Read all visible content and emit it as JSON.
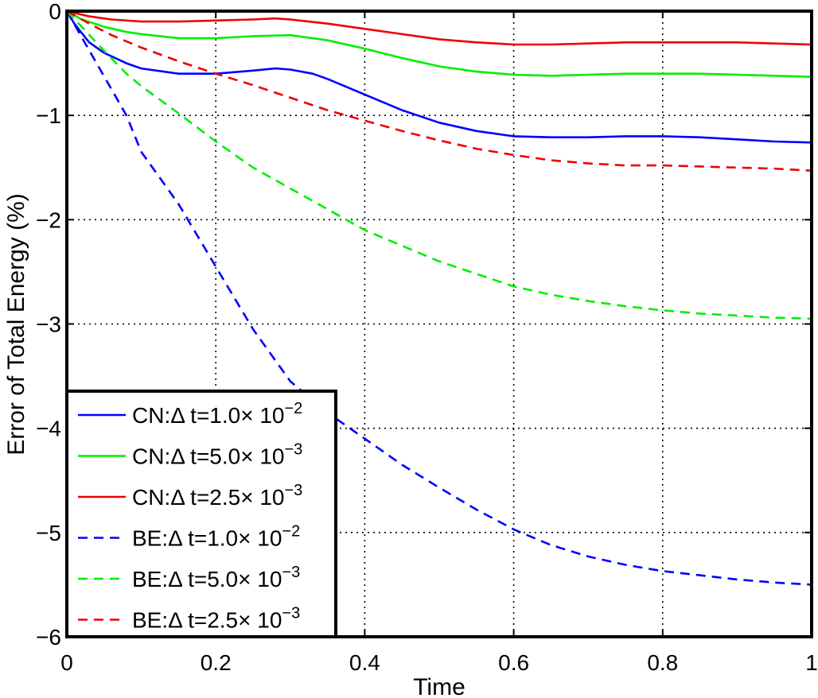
{
  "chart_data": {
    "type": "line",
    "title": "",
    "xlabel": "Time",
    "ylabel": "Error of Total Energy (%)",
    "xlim": [
      0,
      1
    ],
    "ylim": [
      -6,
      0
    ],
    "grid": true,
    "legend_position": "bottom-left",
    "x_ticks": [
      {
        "value": 0,
        "label": "0"
      },
      {
        "value": 0.2,
        "label": "0.2"
      },
      {
        "value": 0.4,
        "label": "0.4"
      },
      {
        "value": 0.6,
        "label": "0.6"
      },
      {
        "value": 0.8,
        "label": "0.8"
      },
      {
        "value": 1,
        "label": "1"
      }
    ],
    "y_ticks": [
      {
        "value": 0,
        "label": "0"
      },
      {
        "value": -1,
        "label": "−1"
      },
      {
        "value": -2,
        "label": "−2"
      },
      {
        "value": -3,
        "label": "−3"
      },
      {
        "value": -4,
        "label": "−4"
      },
      {
        "value": -5,
        "label": "−5"
      },
      {
        "value": -6,
        "label": "−6"
      }
    ],
    "series": [
      {
        "name": "CN:Δ t=1.0× 10^-2",
        "label_base": "CN:Δ t=1.0× 10",
        "label_exp": "−2",
        "color": "#0000ff",
        "dash": "solid",
        "x": [
          0,
          0.01,
          0.03,
          0.05,
          0.08,
          0.1,
          0.15,
          0.2,
          0.25,
          0.28,
          0.3,
          0.33,
          0.35,
          0.4,
          0.45,
          0.5,
          0.55,
          0.6,
          0.65,
          0.7,
          0.75,
          0.8,
          0.85,
          0.9,
          0.95,
          1.0
        ],
        "y": [
          0,
          -0.12,
          -0.3,
          -0.4,
          -0.5,
          -0.55,
          -0.6,
          -0.6,
          -0.57,
          -0.55,
          -0.56,
          -0.6,
          -0.65,
          -0.8,
          -0.95,
          -1.07,
          -1.15,
          -1.2,
          -1.21,
          -1.21,
          -1.2,
          -1.2,
          -1.21,
          -1.23,
          -1.25,
          -1.26
        ]
      },
      {
        "name": "CN:Δ t=5.0× 10^-3",
        "label_base": "CN:Δ t=5.0× 10",
        "label_exp": "−3",
        "color": "#00ee00",
        "dash": "solid",
        "x": [
          0,
          0.02,
          0.05,
          0.08,
          0.1,
          0.15,
          0.2,
          0.25,
          0.3,
          0.35,
          0.4,
          0.45,
          0.5,
          0.55,
          0.6,
          0.65,
          0.7,
          0.75,
          0.8,
          0.85,
          0.9,
          0.95,
          1.0
        ],
        "y": [
          0,
          -0.08,
          -0.15,
          -0.2,
          -0.22,
          -0.26,
          -0.26,
          -0.24,
          -0.23,
          -0.28,
          -0.36,
          -0.45,
          -0.53,
          -0.58,
          -0.61,
          -0.62,
          -0.61,
          -0.6,
          -0.6,
          -0.6,
          -0.61,
          -0.62,
          -0.63
        ]
      },
      {
        "name": "CN:Δ t=2.5× 10^-3",
        "label_base": "CN:Δ t=2.5× 10",
        "label_exp": "−3",
        "color": "#ee0000",
        "dash": "solid",
        "x": [
          0,
          0.03,
          0.06,
          0.1,
          0.15,
          0.2,
          0.25,
          0.28,
          0.3,
          0.35,
          0.4,
          0.45,
          0.5,
          0.55,
          0.6,
          0.65,
          0.7,
          0.75,
          0.8,
          0.85,
          0.9,
          0.95,
          1.0
        ],
        "y": [
          0,
          -0.05,
          -0.08,
          -0.1,
          -0.1,
          -0.09,
          -0.08,
          -0.07,
          -0.08,
          -0.12,
          -0.17,
          -0.22,
          -0.27,
          -0.3,
          -0.32,
          -0.32,
          -0.31,
          -0.3,
          -0.3,
          -0.3,
          -0.3,
          -0.31,
          -0.32
        ]
      },
      {
        "name": "BE:Δ t=1.0× 10^-2",
        "label_base": "BE:Δ t=1.0× 10",
        "label_exp": "−2",
        "color": "#0000ff",
        "dash": "dashed",
        "x": [
          0,
          0.02,
          0.04,
          0.06,
          0.08,
          0.1,
          0.12,
          0.15,
          0.2,
          0.25,
          0.3,
          0.35,
          0.4,
          0.45,
          0.5,
          0.55,
          0.6,
          0.65,
          0.7,
          0.75,
          0.8,
          0.85,
          0.9,
          0.95,
          1.0
        ],
        "y": [
          0,
          -0.25,
          -0.5,
          -0.75,
          -1.0,
          -1.35,
          -1.55,
          -1.85,
          -2.45,
          -3.05,
          -3.55,
          -3.85,
          -4.1,
          -4.35,
          -4.57,
          -4.78,
          -4.97,
          -5.12,
          -5.23,
          -5.31,
          -5.37,
          -5.41,
          -5.45,
          -5.48,
          -5.5
        ]
      },
      {
        "name": "BE:Δ t=5.0× 10^-3",
        "label_base": "BE:Δ t=5.0× 10",
        "label_exp": "−3",
        "color": "#00ee00",
        "dash": "dashed",
        "x": [
          0,
          0.02,
          0.05,
          0.08,
          0.1,
          0.15,
          0.2,
          0.25,
          0.3,
          0.35,
          0.4,
          0.45,
          0.5,
          0.55,
          0.6,
          0.65,
          0.7,
          0.75,
          0.8,
          0.85,
          0.9,
          0.95,
          1.0
        ],
        "y": [
          0,
          -0.15,
          -0.38,
          -0.6,
          -0.72,
          -0.98,
          -1.25,
          -1.5,
          -1.7,
          -1.9,
          -2.1,
          -2.25,
          -2.4,
          -2.52,
          -2.64,
          -2.72,
          -2.78,
          -2.83,
          -2.87,
          -2.9,
          -2.92,
          -2.94,
          -2.95
        ]
      },
      {
        "name": "BE:Δ t=2.5× 10^-3",
        "label_base": "BE:Δ t=2.5× 10",
        "label_exp": "−3",
        "color": "#ee0000",
        "dash": "dashed",
        "x": [
          0,
          0.03,
          0.06,
          0.1,
          0.15,
          0.2,
          0.25,
          0.3,
          0.35,
          0.4,
          0.45,
          0.5,
          0.55,
          0.6,
          0.65,
          0.7,
          0.75,
          0.8,
          0.85,
          0.9,
          0.95,
          1.0
        ],
        "y": [
          0,
          -0.12,
          -0.23,
          -0.35,
          -0.48,
          -0.6,
          -0.71,
          -0.83,
          -0.95,
          -1.05,
          -1.15,
          -1.24,
          -1.32,
          -1.38,
          -1.43,
          -1.46,
          -1.48,
          -1.48,
          -1.49,
          -1.5,
          -1.51,
          -1.53
        ]
      }
    ]
  }
}
